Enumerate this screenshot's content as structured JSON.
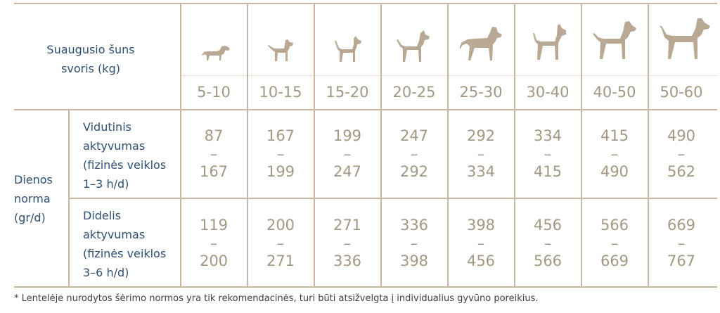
{
  "header": {
    "title_line1": "Suaugusio šuns",
    "title_line2": "svoris (kg)"
  },
  "columns": [
    {
      "range": "5-10",
      "icon": "dachshund-icon"
    },
    {
      "range": "10-15",
      "icon": "small-dog-icon"
    },
    {
      "range": "15-20",
      "icon": "terrier-dog-icon"
    },
    {
      "range": "20-25",
      "icon": "medium-dog-icon"
    },
    {
      "range": "25-30",
      "icon": "shepherd-dog-icon"
    },
    {
      "range": "30-40",
      "icon": "schnauzer-dog-icon"
    },
    {
      "range": "40-50",
      "icon": "pointer-dog-icon"
    },
    {
      "range": "50-60",
      "icon": "great-dane-icon"
    }
  ],
  "daily_norm": {
    "line1": "Dienos",
    "line2": "norma",
    "line3": "(gr/d)"
  },
  "rows": [
    {
      "label_lines": [
        "Vidutinis",
        "aktyvumas",
        "(fizinės veiklos",
        "1–3 h/d)"
      ],
      "values": [
        {
          "from": "87",
          "to": "167"
        },
        {
          "from": "167",
          "to": "199"
        },
        {
          "from": "199",
          "to": "247"
        },
        {
          "from": "247",
          "to": "292"
        },
        {
          "from": "292",
          "to": "334"
        },
        {
          "from": "334",
          "to": "415"
        },
        {
          "from": "415",
          "to": "490"
        },
        {
          "from": "490",
          "to": "562"
        }
      ]
    },
    {
      "label_lines": [
        "Didelis",
        "aktyvumas",
        "(fizinės veiklos",
        "3–6 h/d)"
      ],
      "values": [
        {
          "from": "119",
          "to": "200"
        },
        {
          "from": "200",
          "to": "271"
        },
        {
          "from": "271",
          "to": "336"
        },
        {
          "from": "336",
          "to": "398"
        },
        {
          "from": "398",
          "to": "456"
        },
        {
          "from": "456",
          "to": "566"
        },
        {
          "from": "566",
          "to": "669"
        },
        {
          "from": "669",
          "to": "767"
        }
      ]
    }
  ],
  "dash": "–",
  "footnote": "* Lentelėje nurodytos šėrimo normos yra tik rekomendacinės, turi būti atsižvelgta į individualius gyvūno poreikius.",
  "colors": {
    "line": "#c9b7a3",
    "number": "#a29884",
    "label": "#2f4f74",
    "dog": "#b9a893"
  }
}
